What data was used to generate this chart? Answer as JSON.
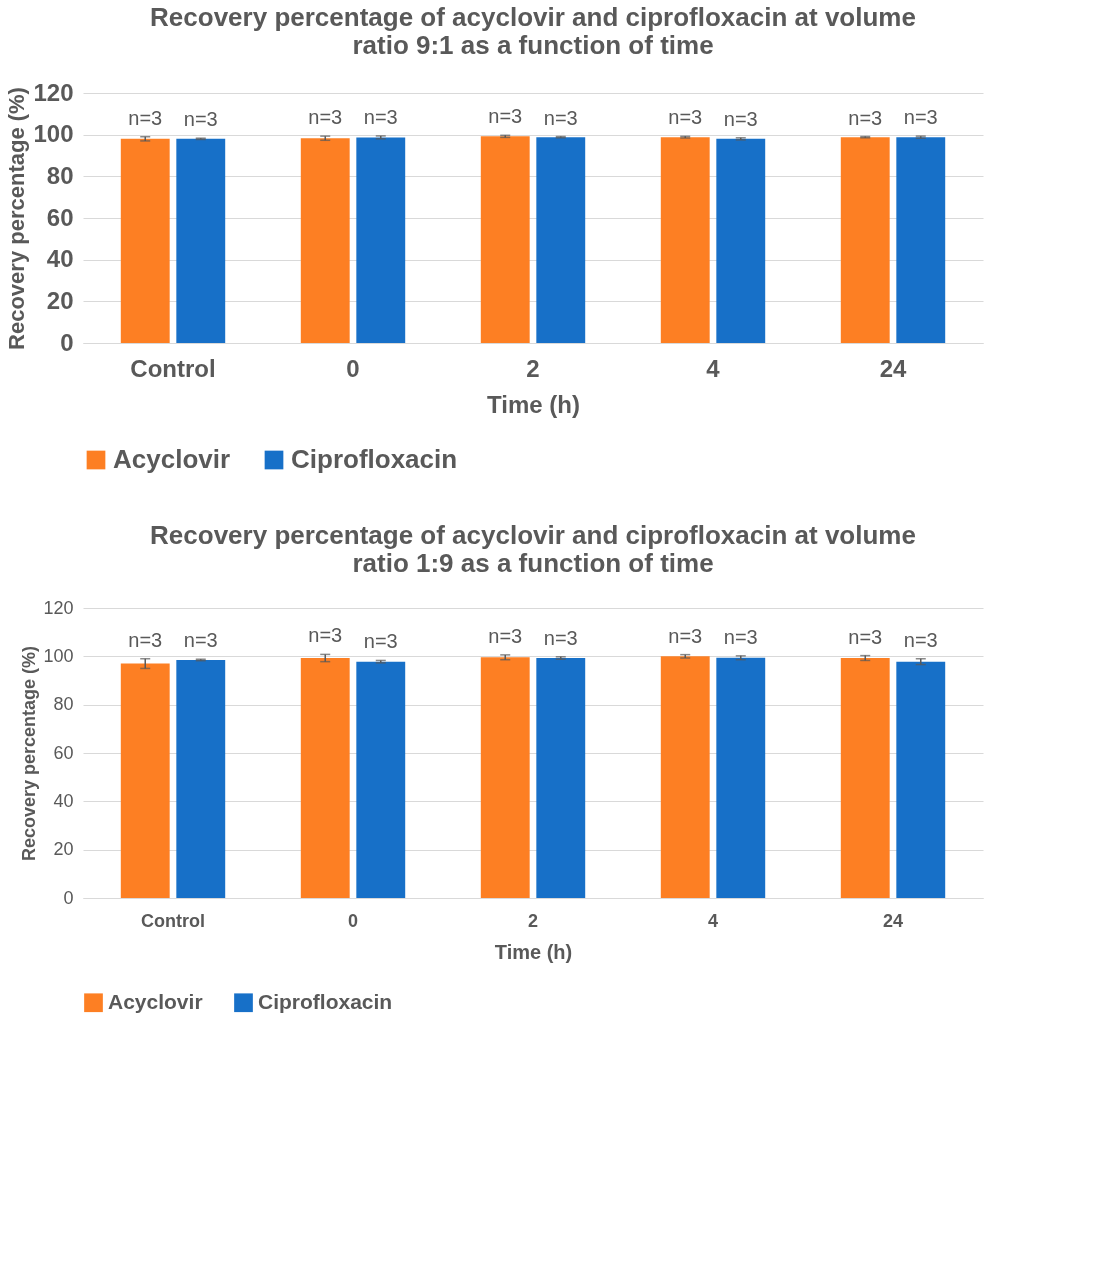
{
  "chart_data": [
    {
      "type": "bar",
      "title": "Recovery percentage of acyclovir and ciprofloxacin at volume ratio 9:1 as a function of time",
      "xlabel": "Time (h)",
      "ylabel": "Recovery percentage (%)",
      "categories": [
        "Control",
        "0",
        "2",
        "4",
        "24"
      ],
      "series": [
        {
          "name": "Acyclovir",
          "color": "#fd7f23",
          "values": [
            98,
            98.3,
            99.2,
            98.8,
            98.8
          ],
          "errors": [
            1,
            1,
            0.5,
            0.4,
            0.3
          ]
        },
        {
          "name": "Ciprofloxacin",
          "color": "#1770c8",
          "values": [
            98,
            98.7,
            98.8,
            98,
            98.8
          ],
          "errors": [
            0.3,
            0.7,
            0.3,
            0.5,
            0.5
          ]
        }
      ],
      "annotations": [
        "n=3",
        "n=3",
        "n=3",
        "n=3",
        "n=3",
        "n=3",
        "n=3",
        "n=3",
        "n=3",
        "n=3"
      ],
      "ylim": [
        0,
        120
      ],
      "yticks": [
        0,
        20,
        40,
        60,
        80,
        100,
        120
      ],
      "grid": "y",
      "legend": "bottom"
    },
    {
      "type": "bar",
      "title": "Recovery percentage of acyclovir and ciprofloxacin at volume ratio 1:9 as a function of time",
      "xlabel": "Time (h)",
      "ylabel": "Recovery percentage (%)",
      "categories": [
        "Control",
        "0",
        "2",
        "4",
        "24"
      ],
      "series": [
        {
          "name": "Acyclovir",
          "color": "#fd7f23",
          "values": [
            97,
            99.3,
            99.6,
            100,
            99.3
          ],
          "errors": [
            2,
            1.5,
            1,
            0.7,
            1
          ]
        },
        {
          "name": "Ciprofloxacin",
          "color": "#1770c8",
          "values": [
            98.5,
            97.8,
            99.3,
            99.4,
            97.8
          ],
          "errors": [
            0.3,
            0.5,
            0.5,
            0.8,
            1.2
          ]
        }
      ],
      "annotations": [
        "n=3",
        "n=3",
        "n=3",
        "n=3",
        "n=3",
        "n=3",
        "n=3",
        "n=3",
        "n=3",
        "n=3"
      ],
      "ylim": [
        0,
        120
      ],
      "yticks": [
        0,
        20,
        40,
        60,
        80,
        100,
        120
      ],
      "grid": "y",
      "legend": "bottom"
    }
  ]
}
